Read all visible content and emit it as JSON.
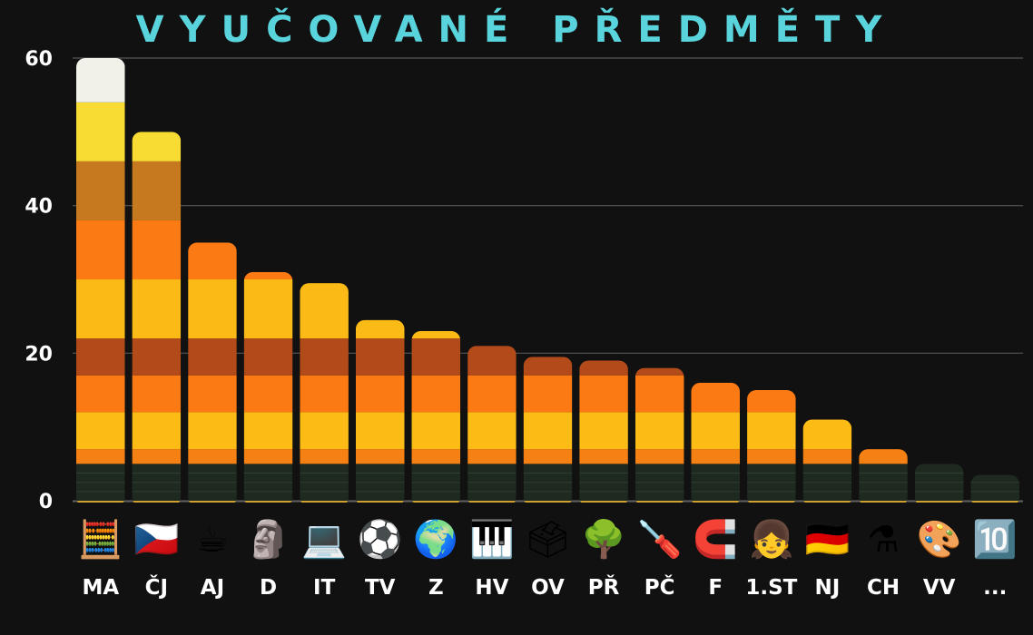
{
  "title": "VYUČOVANÉ PŘEDMĚTY",
  "colors": {
    "background": "#111111",
    "title": "#5ad4dc",
    "grid": "#555555",
    "bands": [
      "#1e2a20",
      "#f58014",
      "#fcbb15",
      "#fb7a14",
      "#b24a19",
      "#fbba15",
      "#fb7a14",
      "#c7791f",
      "#f8dc34",
      "#f1f1ea"
    ]
  },
  "chart_data": {
    "type": "bar",
    "stacked": true,
    "title": "VYUČOVANÉ PŘEDMĚTY",
    "ylim": [
      0,
      60
    ],
    "yticks": [
      0,
      20,
      40,
      60
    ],
    "grid": true,
    "band_bounds": [
      0,
      5,
      7,
      12,
      17,
      22,
      30,
      38,
      46,
      54
    ],
    "categories": [
      "MA",
      "ČJ",
      "AJ",
      "D",
      "IT",
      "TV",
      "Z",
      "HV",
      "OV",
      "PŘ",
      "PČ",
      "F",
      "1.ST",
      "NJ",
      "CH",
      "VV",
      "..."
    ],
    "icons": [
      "calculator-icon",
      "czech-flag-book-icon",
      "tea-cup-icon",
      "bust-statue-icon",
      "laptop-icon",
      "sports-balls-icon",
      "globe-icon",
      "piano-icon",
      "ballot-box-icon",
      "tree-icon",
      "screwdriver-icon",
      "magnet-icon",
      "schoolgirl-icon",
      "german-flag-icon",
      "flask-icon",
      "palette-icon",
      "keycap-ten-plus-icon"
    ],
    "icon_glyphs": [
      "🧮",
      "🇨🇿",
      "☕",
      "🗿",
      "💻",
      "⚽",
      "🌍",
      "🎹",
      "🗳",
      "🌳",
      "🪛",
      "🧲",
      "👧",
      "🇩🇪",
      "⚗",
      "🎨",
      "🔟"
    ],
    "values": [
      60,
      50,
      35,
      31,
      29.5,
      24.5,
      23,
      21,
      19.5,
      19,
      18,
      16,
      15,
      11,
      7,
      5,
      3.5
    ]
  }
}
